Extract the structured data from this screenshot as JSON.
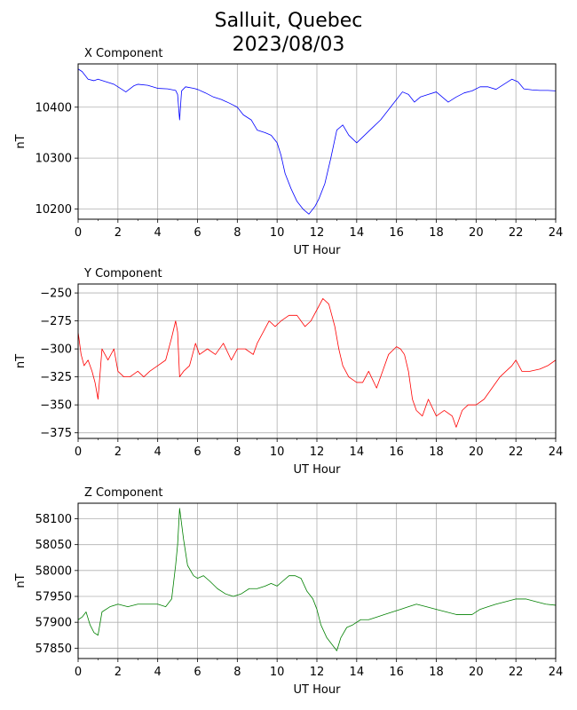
{
  "figure": {
    "title_line1": "Salluit, Quebec",
    "title_line2": "2023/08/03"
  },
  "chart_data": [
    {
      "type": "line",
      "title": "X Component",
      "xlabel": "UT Hour",
      "ylabel": "nT",
      "color": "#0000ff",
      "xlim": [
        0,
        24
      ],
      "ylim": [
        10180,
        10485
      ],
      "xticks": [
        0,
        2,
        4,
        6,
        8,
        10,
        12,
        14,
        16,
        18,
        20,
        22,
        24
      ],
      "yticks": [
        10200,
        10300,
        10400
      ],
      "grid": true,
      "x": [
        0,
        0.2,
        0.5,
        0.8,
        1,
        1.4,
        1.8,
        2,
        2.4,
        2.8,
        3,
        3.5,
        4,
        4.5,
        4.9,
        5,
        5.1,
        5.2,
        5.4,
        5.8,
        6,
        6.4,
        6.8,
        7.2,
        7.6,
        8,
        8.3,
        8.7,
        9,
        9.4,
        9.7,
        10,
        10.2,
        10.4,
        10.7,
        11,
        11.3,
        11.6,
        11.9,
        12.1,
        12.4,
        12.7,
        13,
        13.3,
        13.6,
        14,
        14.4,
        14.8,
        15.2,
        15.6,
        16,
        16.3,
        16.6,
        16.9,
        17.2,
        17.6,
        18,
        18.3,
        18.6,
        19,
        19.4,
        19.8,
        20.2,
        20.6,
        21,
        21.4,
        21.8,
        22.1,
        22.4,
        22.8,
        23.2,
        23.6,
        24
      ],
      "y": [
        10475,
        10470,
        10455,
        10452,
        10455,
        10450,
        10445,
        10440,
        10430,
        10442,
        10445,
        10443,
        10437,
        10436,
        10433,
        10425,
        10375,
        10432,
        10440,
        10437,
        10435,
        10428,
        10420,
        10415,
        10408,
        10400,
        10385,
        10375,
        10355,
        10350,
        10345,
        10330,
        10305,
        10270,
        10240,
        10215,
        10200,
        10190,
        10205,
        10220,
        10250,
        10300,
        10355,
        10365,
        10345,
        10330,
        10345,
        10360,
        10375,
        10395,
        10415,
        10430,
        10425,
        10410,
        10420,
        10425,
        10430,
        10420,
        10410,
        10420,
        10428,
        10432,
        10440,
        10440,
        10435,
        10445,
        10455,
        10450,
        10436,
        10434,
        10433,
        10433,
        10432
      ]
    },
    {
      "type": "line",
      "title": "Y Component",
      "xlabel": "UT Hour",
      "ylabel": "nT",
      "color": "#ff0000",
      "xlim": [
        0,
        24
      ],
      "ylim": [
        -380,
        -242
      ],
      "xticks": [
        0,
        2,
        4,
        6,
        8,
        10,
        12,
        14,
        16,
        18,
        20,
        22,
        24
      ],
      "yticks": [
        -375,
        -350,
        -325,
        -300,
        -275,
        -250
      ],
      "grid": true,
      "x": [
        0,
        0.15,
        0.3,
        0.5,
        0.7,
        0.85,
        1,
        1.2,
        1.5,
        1.8,
        2,
        2.3,
        2.6,
        3,
        3.3,
        3.6,
        4,
        4.4,
        4.7,
        4.9,
        5,
        5.1,
        5.3,
        5.6,
        5.9,
        6.1,
        6.5,
        6.9,
        7.3,
        7.7,
        8,
        8.4,
        8.8,
        9,
        9.3,
        9.6,
        9.9,
        10.2,
        10.6,
        11,
        11.4,
        11.7,
        12,
        12.3,
        12.6,
        12.9,
        13.1,
        13.3,
        13.6,
        14,
        14.3,
        14.6,
        15,
        15.3,
        15.6,
        16,
        16.2,
        16.4,
        16.6,
        16.8,
        17,
        17.3,
        17.6,
        18,
        18.4,
        18.8,
        19,
        19.3,
        19.6,
        20,
        20.4,
        20.8,
        21.2,
        21.5,
        21.8,
        22,
        22.3,
        22.7,
        23.2,
        23.6,
        24
      ],
      "y": [
        -285,
        -305,
        -315,
        -310,
        -320,
        -330,
        -345,
        -300,
        -310,
        -300,
        -320,
        -325,
        -325,
        -320,
        -325,
        -320,
        -315,
        -310,
        -290,
        -275,
        -285,
        -325,
        -320,
        -315,
        -295,
        -305,
        -300,
        -305,
        -295,
        -310,
        -300,
        -300,
        -305,
        -295,
        -285,
        -275,
        -280,
        -275,
        -270,
        -270,
        -280,
        -275,
        -265,
        -255,
        -260,
        -280,
        -300,
        -315,
        -325,
        -330,
        -330,
        -320,
        -335,
        -320,
        -305,
        -298,
        -300,
        -305,
        -320,
        -345,
        -355,
        -360,
        -345,
        -360,
        -355,
        -360,
        -370,
        -355,
        -350,
        -350,
        -345,
        -335,
        -325,
        -320,
        -315,
        -310,
        -320,
        -320,
        -318,
        -315,
        -310
      ]
    },
    {
      "type": "line",
      "title": "Z Component",
      "xlabel": "UT Hour",
      "ylabel": "nT",
      "color": "#008000",
      "xlim": [
        0,
        24
      ],
      "ylim": [
        57830,
        58130
      ],
      "xticks": [
        0,
        2,
        4,
        6,
        8,
        10,
        12,
        14,
        16,
        18,
        20,
        22,
        24
      ],
      "yticks": [
        57850,
        57900,
        57950,
        58000,
        58050,
        58100
      ],
      "grid": true,
      "x": [
        0,
        0.2,
        0.4,
        0.6,
        0.8,
        1,
        1.2,
        1.6,
        2,
        2.5,
        3,
        3.5,
        4,
        4.4,
        4.7,
        4.9,
        5,
        5.1,
        5.2,
        5.3,
        5.5,
        5.8,
        6,
        6.3,
        6.6,
        7,
        7.4,
        7.8,
        8.2,
        8.6,
        9,
        9.4,
        9.7,
        10,
        10.3,
        10.6,
        10.9,
        11.2,
        11.5,
        11.8,
        12,
        12.2,
        12.5,
        12.8,
        13,
        13.2,
        13.5,
        13.8,
        14.2,
        14.6,
        15,
        15.4,
        15.8,
        16.2,
        16.6,
        17,
        17.5,
        18,
        18.5,
        19,
        19.4,
        19.8,
        20.2,
        20.6,
        21,
        21.5,
        22,
        22.5,
        23,
        23.5,
        24
      ],
      "y": [
        57905,
        57910,
        57920,
        57895,
        57880,
        57875,
        57920,
        57930,
        57935,
        57930,
        57935,
        57935,
        57935,
        57930,
        57945,
        58010,
        58050,
        58120,
        58090,
        58060,
        58010,
        57990,
        57985,
        57990,
        57980,
        57965,
        57955,
        57950,
        57955,
        57965,
        57965,
        57970,
        57975,
        57970,
        57980,
        57990,
        57990,
        57985,
        57960,
        57945,
        57925,
        57895,
        57870,
        57855,
        57845,
        57870,
        57890,
        57895,
        57905,
        57905,
        57910,
        57915,
        57920,
        57925,
        57930,
        57935,
        57930,
        57925,
        57920,
        57915,
        57915,
        57915,
        57925,
        57930,
        57935,
        57940,
        57945,
        57945,
        57940,
        57935,
        57933
      ]
    }
  ]
}
